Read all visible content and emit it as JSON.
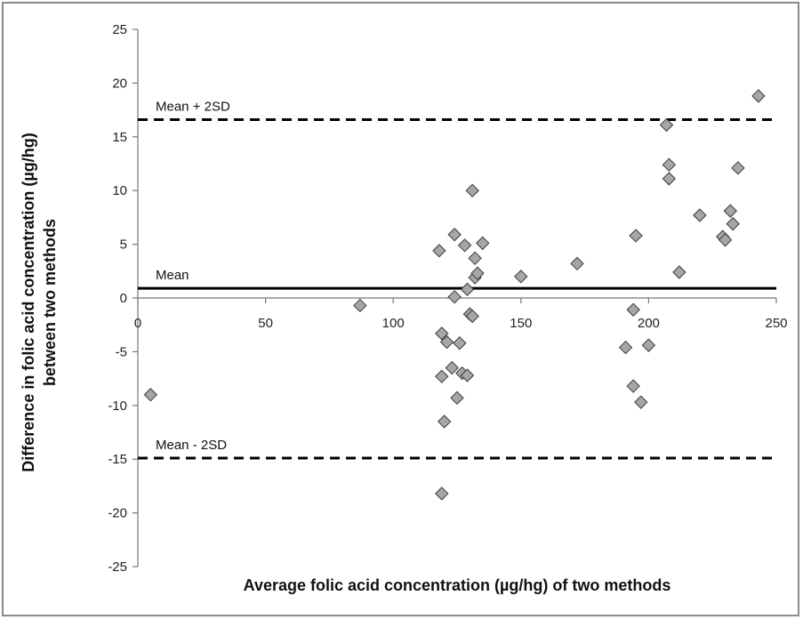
{
  "chart_data": {
    "type": "scatter",
    "xlabel": "Average folic acid concentration (µg/hg) of two methods",
    "ylabel_line1": "Difference in folic acid concentration (µg/hg)",
    "ylabel_line2": "between two methods",
    "xlim": [
      0,
      250
    ],
    "ylim": [
      -25,
      25
    ],
    "x_ticks": [
      0,
      50,
      100,
      150,
      200,
      250
    ],
    "y_ticks": [
      25,
      20,
      15,
      10,
      5,
      0,
      -5,
      -10,
      -15,
      -20,
      -25
    ],
    "grid": false,
    "marker": "diamond",
    "marker_color": "#a6a6a6",
    "reference_lines": [
      {
        "label": "Mean + 2SD",
        "y": 16.6,
        "style": "dashed"
      },
      {
        "label": "Mean",
        "y": 0.9,
        "style": "solid"
      },
      {
        "label": "Mean - 2SD",
        "y": -14.9,
        "style": "dashed"
      }
    ],
    "points": [
      {
        "x": 5,
        "y": -9.0
      },
      {
        "x": 87,
        "y": -0.7
      },
      {
        "x": 118,
        "y": 4.4
      },
      {
        "x": 119,
        "y": -3.3
      },
      {
        "x": 119,
        "y": -7.3
      },
      {
        "x": 119,
        "y": -18.2
      },
      {
        "x": 120,
        "y": -11.5
      },
      {
        "x": 121,
        "y": -4.1
      },
      {
        "x": 123,
        "y": -6.5
      },
      {
        "x": 124,
        "y": 5.9
      },
      {
        "x": 124,
        "y": 0.1
      },
      {
        "x": 125,
        "y": -9.3
      },
      {
        "x": 126,
        "y": -4.2
      },
      {
        "x": 127,
        "y": -7.0
      },
      {
        "x": 128,
        "y": 4.9
      },
      {
        "x": 129,
        "y": -7.2
      },
      {
        "x": 129,
        "y": 0.8
      },
      {
        "x": 130,
        "y": -1.5
      },
      {
        "x": 131,
        "y": 10.0
      },
      {
        "x": 131,
        "y": -1.7
      },
      {
        "x": 132,
        "y": 3.7
      },
      {
        "x": 132,
        "y": 1.9
      },
      {
        "x": 133,
        "y": 2.3
      },
      {
        "x": 135,
        "y": 5.1
      },
      {
        "x": 150,
        "y": 2.0
      },
      {
        "x": 172,
        "y": 3.2
      },
      {
        "x": 191,
        "y": -4.6
      },
      {
        "x": 194,
        "y": -1.1
      },
      {
        "x": 194,
        "y": -8.2
      },
      {
        "x": 195,
        "y": 5.8
      },
      {
        "x": 197,
        "y": -9.7
      },
      {
        "x": 200,
        "y": -4.4
      },
      {
        "x": 207,
        "y": 16.1
      },
      {
        "x": 208,
        "y": 11.1
      },
      {
        "x": 208,
        "y": 12.4
      },
      {
        "x": 212,
        "y": 2.4
      },
      {
        "x": 220,
        "y": 7.7
      },
      {
        "x": 229,
        "y": 5.7
      },
      {
        "x": 230,
        "y": 5.4
      },
      {
        "x": 232,
        "y": 8.1
      },
      {
        "x": 233,
        "y": 6.9
      },
      {
        "x": 235,
        "y": 12.1
      },
      {
        "x": 243,
        "y": 18.8
      }
    ]
  }
}
